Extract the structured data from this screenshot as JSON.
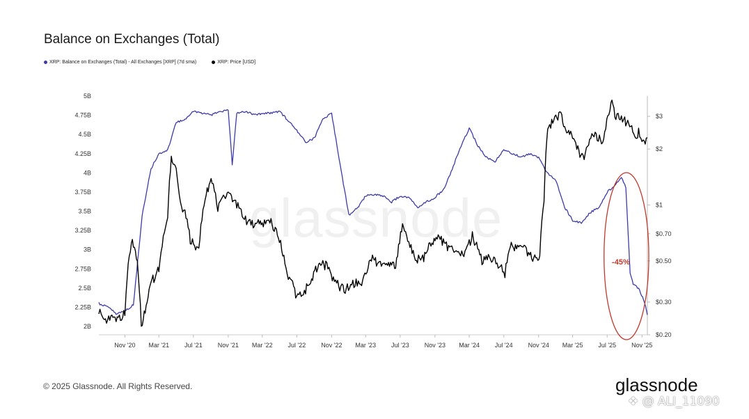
{
  "chart_data": {
    "type": "line",
    "title": "Balance on Exchanges (Total)",
    "x_ticks": [
      "Nov '20",
      "Mar '21",
      "Jul '21",
      "Nov '21",
      "Mar '22",
      "Jul '22",
      "Nov '22",
      "Mar '23",
      "Jul '23",
      "Nov '23",
      "Mar '24",
      "Jul '24",
      "Nov '24",
      "Mar '25",
      "Jul '25",
      "Nov '25"
    ],
    "x_range": [
      "2020-08-01",
      "2025-11-20"
    ],
    "y_left": {
      "ticks": [
        "5B",
        "4.75B",
        "4.5B",
        "4.25B",
        "4B",
        "3.75B",
        "3.5B",
        "3.25B",
        "3B",
        "2.75B",
        "2.5B",
        "2.25B",
        "2B"
      ],
      "range": [
        2,
        5
      ]
    },
    "y_right": {
      "scale": "log",
      "ticks": [
        "$3",
        "$2",
        "$1",
        "$0.70",
        "$0.50",
        "$0.30",
        "$0.20"
      ],
      "range": [
        0.2,
        3.6
      ]
    },
    "legend_position": "top-left",
    "series": [
      {
        "name": "XRP: Balance on Exchanges (Total) - All Exchanges [XRP] (7d sma)",
        "color": "#3d3aa8",
        "axis": "left",
        "points": [
          [
            "2020-08-01",
            2.3
          ],
          [
            "2020-09-01",
            2.25
          ],
          [
            "2020-10-01",
            2.17
          ],
          [
            "2020-11-01",
            2.2
          ],
          [
            "2020-12-01",
            2.28
          ],
          [
            "2021-01-01",
            3.45
          ],
          [
            "2021-02-01",
            4.05
          ],
          [
            "2021-03-01",
            4.25
          ],
          [
            "2021-04-01",
            4.3
          ],
          [
            "2021-05-01",
            4.65
          ],
          [
            "2021-06-01",
            4.7
          ],
          [
            "2021-07-01",
            4.8
          ],
          [
            "2021-08-01",
            4.78
          ],
          [
            "2021-09-01",
            4.75
          ],
          [
            "2021-10-01",
            4.8
          ],
          [
            "2021-11-01",
            4.82
          ],
          [
            "2021-11-15",
            4.1
          ],
          [
            "2021-12-01",
            4.78
          ],
          [
            "2022-01-01",
            4.8
          ],
          [
            "2022-02-01",
            4.76
          ],
          [
            "2022-03-01",
            4.77
          ],
          [
            "2022-04-01",
            4.78
          ],
          [
            "2022-05-01",
            4.8
          ],
          [
            "2022-06-01",
            4.68
          ],
          [
            "2022-07-01",
            4.55
          ],
          [
            "2022-08-01",
            4.4
          ],
          [
            "2022-09-01",
            4.45
          ],
          [
            "2022-10-01",
            4.7
          ],
          [
            "2022-11-01",
            4.78
          ],
          [
            "2022-12-01",
            4.1
          ],
          [
            "2023-01-01",
            3.45
          ],
          [
            "2023-02-01",
            3.55
          ],
          [
            "2023-03-01",
            3.7
          ],
          [
            "2023-04-01",
            3.72
          ],
          [
            "2023-05-01",
            3.7
          ],
          [
            "2023-06-01",
            3.62
          ],
          [
            "2023-07-01",
            3.7
          ],
          [
            "2023-08-01",
            3.68
          ],
          [
            "2023-09-01",
            3.55
          ],
          [
            "2023-10-01",
            3.62
          ],
          [
            "2023-11-01",
            3.68
          ],
          [
            "2023-12-01",
            3.78
          ],
          [
            "2024-01-01",
            4.05
          ],
          [
            "2024-02-01",
            4.35
          ],
          [
            "2024-03-01",
            4.58
          ],
          [
            "2024-04-01",
            4.35
          ],
          [
            "2024-05-01",
            4.2
          ],
          [
            "2024-06-01",
            4.15
          ],
          [
            "2024-07-01",
            4.3
          ],
          [
            "2024-08-01",
            4.25
          ],
          [
            "2024-09-01",
            4.2
          ],
          [
            "2024-10-01",
            4.25
          ],
          [
            "2024-11-01",
            4.2
          ],
          [
            "2024-12-01",
            4.0
          ],
          [
            "2025-01-01",
            3.9
          ],
          [
            "2025-02-01",
            3.55
          ],
          [
            "2025-03-01",
            3.38
          ],
          [
            "2025-04-01",
            3.35
          ],
          [
            "2025-05-01",
            3.48
          ],
          [
            "2025-06-01",
            3.55
          ],
          [
            "2025-07-01",
            3.75
          ],
          [
            "2025-08-01",
            3.85
          ],
          [
            "2025-08-20",
            3.95
          ],
          [
            "2025-09-05",
            3.8
          ],
          [
            "2025-09-20",
            2.7
          ],
          [
            "2025-10-01",
            2.55
          ],
          [
            "2025-10-20",
            2.5
          ],
          [
            "2025-11-10",
            2.32
          ],
          [
            "2025-11-20",
            2.15
          ]
        ]
      },
      {
        "name": "XRP: Price [USD]",
        "color": "#000000",
        "axis": "right",
        "points": [
          [
            "2020-08-01",
            0.27
          ],
          [
            "2020-09-01",
            0.24
          ],
          [
            "2020-10-01",
            0.245
          ],
          [
            "2020-11-01",
            0.26
          ],
          [
            "2020-11-24",
            0.65
          ],
          [
            "2020-12-15",
            0.5
          ],
          [
            "2020-12-29",
            0.21
          ],
          [
            "2021-01-15",
            0.29
          ],
          [
            "2021-02-01",
            0.38
          ],
          [
            "2021-03-01",
            0.45
          ],
          [
            "2021-04-01",
            0.9
          ],
          [
            "2021-04-14",
            1.75
          ],
          [
            "2021-05-01",
            1.5
          ],
          [
            "2021-05-20",
            0.95
          ],
          [
            "2021-06-01",
            0.9
          ],
          [
            "2021-06-20",
            0.65
          ],
          [
            "2021-07-20",
            0.58
          ],
          [
            "2021-08-15",
            1.2
          ],
          [
            "2021-09-05",
            1.35
          ],
          [
            "2021-09-25",
            0.95
          ],
          [
            "2021-10-15",
            1.1
          ],
          [
            "2021-11-01",
            1.18
          ],
          [
            "2021-12-01",
            1.0
          ],
          [
            "2022-01-01",
            0.83
          ],
          [
            "2022-02-01",
            0.78
          ],
          [
            "2022-03-01",
            0.8
          ],
          [
            "2022-04-01",
            0.82
          ],
          [
            "2022-05-01",
            0.64
          ],
          [
            "2022-06-01",
            0.42
          ],
          [
            "2022-07-01",
            0.32
          ],
          [
            "2022-08-01",
            0.35
          ],
          [
            "2022-09-20",
            0.48
          ],
          [
            "2022-10-15",
            0.47
          ],
          [
            "2022-11-15",
            0.38
          ],
          [
            "2022-12-15",
            0.35
          ],
          [
            "2023-01-15",
            0.38
          ],
          [
            "2023-02-15",
            0.39
          ],
          [
            "2023-03-29",
            0.52
          ],
          [
            "2023-04-15",
            0.48
          ],
          [
            "2023-06-15",
            0.48
          ],
          [
            "2023-07-13",
            0.8
          ],
          [
            "2023-07-20",
            0.72
          ],
          [
            "2023-08-20",
            0.52
          ],
          [
            "2023-09-15",
            0.5
          ],
          [
            "2023-11-05",
            0.68
          ],
          [
            "2023-12-15",
            0.6
          ],
          [
            "2024-01-15",
            0.54
          ],
          [
            "2024-02-15",
            0.55
          ],
          [
            "2024-03-12",
            0.68
          ],
          [
            "2024-04-15",
            0.5
          ],
          [
            "2024-05-15",
            0.52
          ],
          [
            "2024-06-15",
            0.48
          ],
          [
            "2024-07-05",
            0.42
          ],
          [
            "2024-07-20",
            0.6
          ],
          [
            "2024-08-15",
            0.58
          ],
          [
            "2024-09-15",
            0.58
          ],
          [
            "2024-10-15",
            0.52
          ],
          [
            "2024-11-05",
            0.52
          ],
          [
            "2024-11-20",
            1.1
          ],
          [
            "2024-12-03",
            2.55
          ],
          [
            "2025-01-15",
            3.1
          ],
          [
            "2025-02-01",
            2.6
          ],
          [
            "2025-03-01",
            2.3
          ],
          [
            "2025-04-07",
            1.75
          ],
          [
            "2025-05-12",
            2.5
          ],
          [
            "2025-06-15",
            2.15
          ],
          [
            "2025-07-18",
            3.55
          ],
          [
            "2025-08-01",
            3.0
          ],
          [
            "2025-09-01",
            2.85
          ],
          [
            "2025-10-10",
            2.35
          ],
          [
            "2025-10-20",
            2.45
          ],
          [
            "2025-11-05",
            2.15
          ],
          [
            "2025-11-20",
            2.3
          ]
        ]
      }
    ],
    "annotation": {
      "text": "-45%",
      "color": "#c0392b",
      "date_range": [
        "2025-06-20",
        "2025-11-25"
      ]
    }
  },
  "watermark": "glassnode",
  "footer": {
    "copyright": "© 2025 Glassnode. All Rights Reserved.",
    "brand": "glassnode",
    "credit": "❖ @ ALI_11090"
  }
}
